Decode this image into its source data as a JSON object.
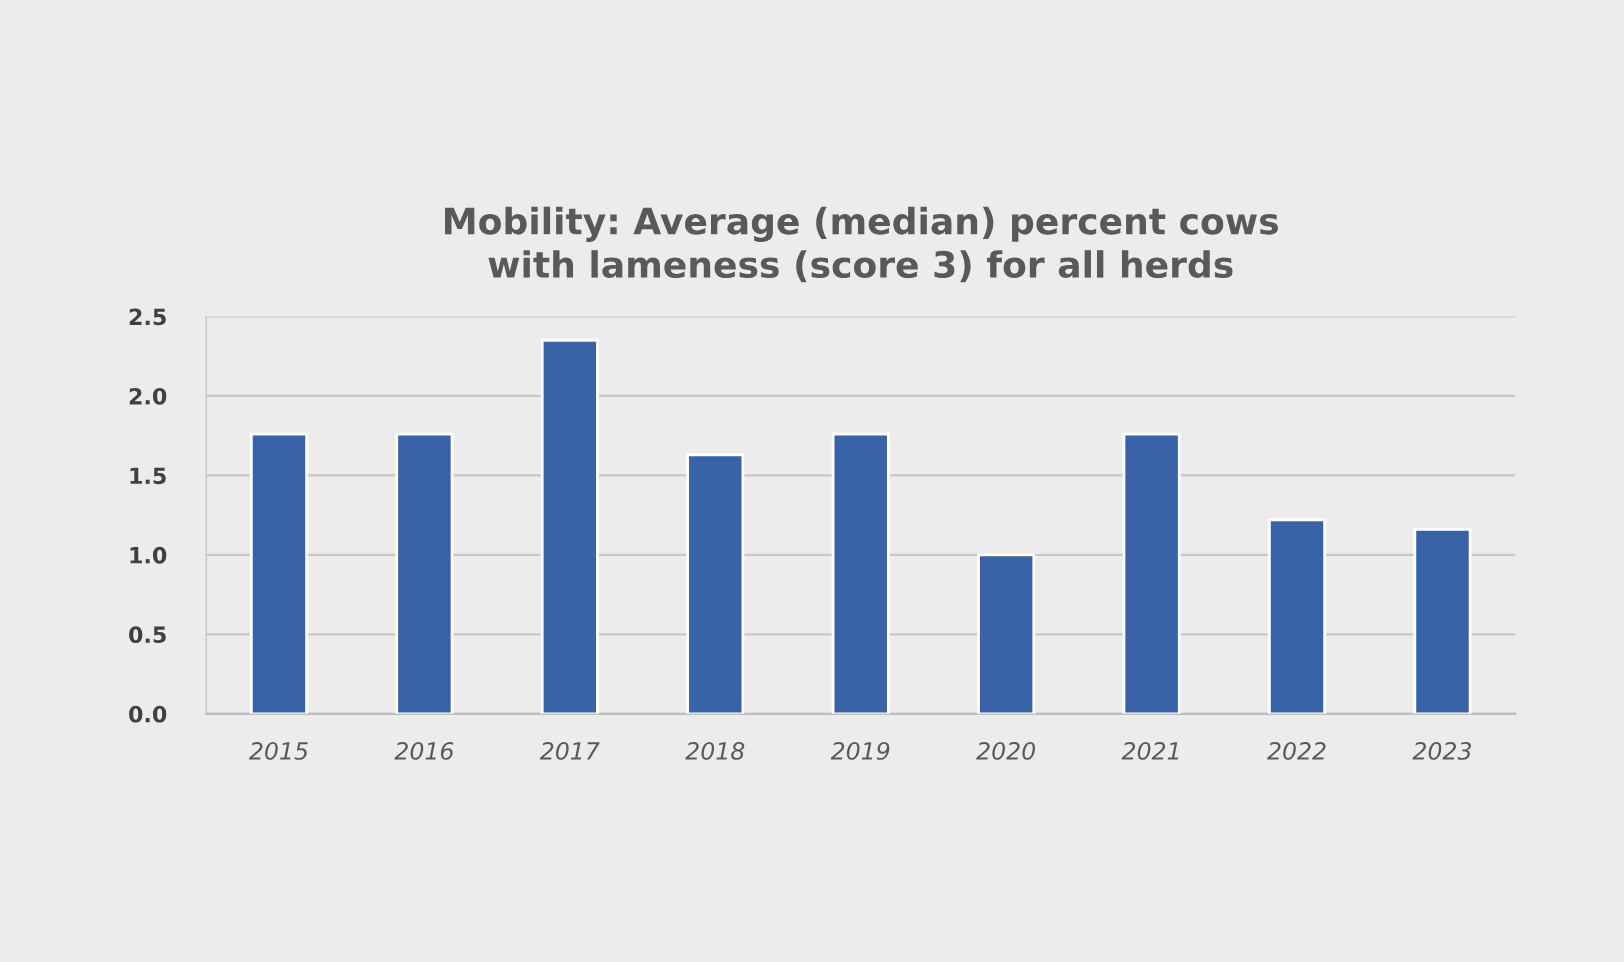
{
  "chart_data": {
    "type": "bar",
    "title": "Mobility: Average (median) percent cows\nwith lameness (score 3) for all herds",
    "categories": [
      "2015",
      "2016",
      "2017",
      "2018",
      "2019",
      "2020",
      "2021",
      "2022",
      "2023"
    ],
    "values": [
      1.76,
      1.76,
      2.35,
      1.63,
      1.76,
      1.0,
      1.76,
      1.22,
      1.16
    ],
    "color": "#3a62a7",
    "ylim": [
      0,
      2.5
    ],
    "yticks": [
      {
        "value": 0,
        "label": "0.0"
      },
      {
        "value": 0.5,
        "label": "0.5"
      },
      {
        "value": 1,
        "label": "1.0"
      },
      {
        "value": 1.5,
        "label": "1.5"
      },
      {
        "value": 2,
        "label": "2.0"
      },
      {
        "value": 2.5,
        "label": "2.5"
      }
    ],
    "grid": "y",
    "legend": false
  }
}
